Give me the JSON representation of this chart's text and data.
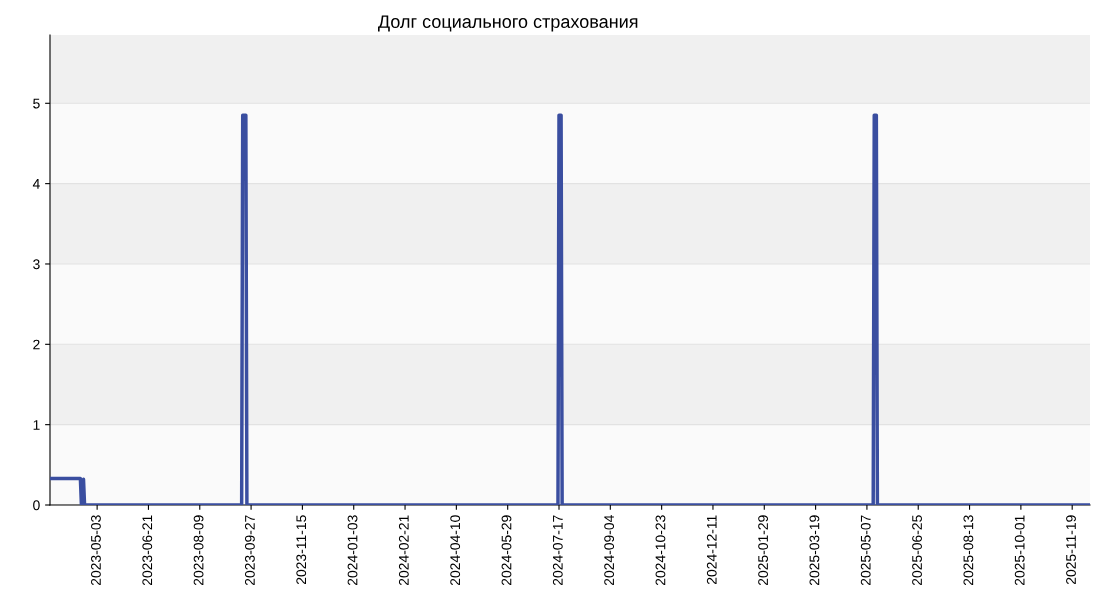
{
  "chart_data": {
    "type": "line",
    "title": "Долг социального страхования",
    "x": [
      "2023-03-19",
      "2023-04-17",
      "2023-04-18",
      "2023-04-20",
      "2023-04-21",
      "2023-09-18",
      "2023-09-19",
      "2023-09-22",
      "2023-09-23",
      "2024-07-16",
      "2024-07-17",
      "2024-07-19",
      "2024-07-20",
      "2025-05-13",
      "2025-05-14",
      "2025-05-16",
      "2025-05-17",
      "2025-12-06"
    ],
    "series": [
      {
        "color": "#3a4ea0",
        "values": [
          0.33,
          0.33,
          0,
          0.32,
          0,
          0,
          4.85,
          4.85,
          0,
          0,
          4.85,
          4.85,
          0,
          0,
          4.85,
          4.85,
          0,
          0
        ]
      }
    ],
    "xlim": [
      "2023-03-19",
      "2025-12-06"
    ],
    "xticks": [
      "2023-05-03",
      "2023-06-21",
      "2023-08-09",
      "2023-09-27",
      "2023-11-15",
      "2024-01-03",
      "2024-02-21",
      "2024-04-10",
      "2024-05-29",
      "2024-07-17",
      "2024-09-04",
      "2024-10-23",
      "2024-12-11",
      "2025-01-29",
      "2025-03-19",
      "2025-05-07",
      "2025-06-25",
      "2025-08-13",
      "2025-10-01",
      "2025-11-19"
    ],
    "ylim": [
      0,
      5.85
    ],
    "yticks": [
      0,
      1,
      2,
      3,
      4,
      5
    ],
    "grid": "y",
    "marker": "none",
    "line_style": "solid"
  }
}
